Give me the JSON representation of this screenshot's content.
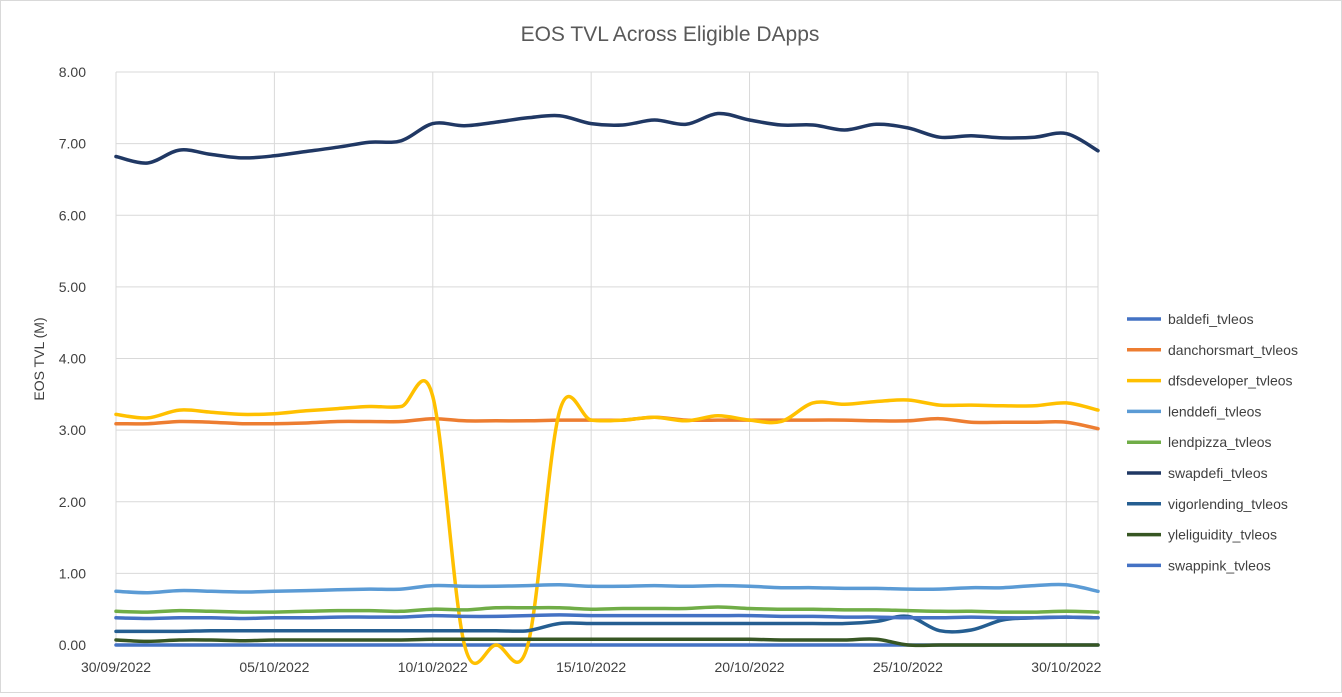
{
  "chart_data": {
    "type": "line",
    "title": "EOS TVL Across Eligible DApps",
    "xlabel": "",
    "ylabel": "EOS TVL (M)",
    "ylim": [
      0,
      8
    ],
    "yticks": [
      "0.00",
      "1.00",
      "2.00",
      "3.00",
      "4.00",
      "5.00",
      "6.00",
      "7.00",
      "8.00"
    ],
    "xticks": [
      "30/09/2022",
      "05/10/2022",
      "10/10/2022",
      "15/10/2022",
      "20/10/2022",
      "25/10/2022",
      "30/10/2022"
    ],
    "x": [
      "30/09/2022",
      "01/10/2022",
      "02/10/2022",
      "03/10/2022",
      "04/10/2022",
      "05/10/2022",
      "06/10/2022",
      "07/10/2022",
      "08/10/2022",
      "09/10/2022",
      "10/10/2022",
      "11/10/2022",
      "12/10/2022",
      "13/10/2022",
      "14/10/2022",
      "15/10/2022",
      "16/10/2022",
      "17/10/2022",
      "18/10/2022",
      "19/10/2022",
      "20/10/2022",
      "21/10/2022",
      "22/10/2022",
      "23/10/2022",
      "24/10/2022",
      "25/10/2022",
      "26/10/2022",
      "27/10/2022",
      "28/10/2022",
      "29/10/2022",
      "30/10/2022",
      "31/10/2022"
    ],
    "grid": true,
    "legend_position": "right",
    "series": [
      {
        "name": "baldefi_tvleos",
        "color": "#4472c4",
        "values": [
          0,
          0,
          0,
          0,
          0,
          0,
          0,
          0,
          0,
          0,
          0,
          0,
          0,
          0,
          0,
          0,
          0,
          0,
          0,
          0,
          0,
          0,
          0,
          0,
          0,
          0,
          0,
          0,
          0,
          0,
          0,
          0
        ]
      },
      {
        "name": "danchorsmart_tvleos",
        "color": "#ed7d31",
        "values": [
          3.09,
          3.09,
          3.12,
          3.11,
          3.09,
          3.09,
          3.1,
          3.12,
          3.12,
          3.12,
          3.16,
          3.13,
          3.13,
          3.13,
          3.14,
          3.14,
          3.14,
          3.18,
          3.14,
          3.14,
          3.14,
          3.14,
          3.14,
          3.14,
          3.13,
          3.13,
          3.16,
          3.11,
          3.11,
          3.11,
          3.11,
          3.02
        ]
      },
      {
        "name": "dfsdeveloper_tvleos",
        "color": "#ffc000",
        "values": [
          3.22,
          3.17,
          3.28,
          3.25,
          3.22,
          3.23,
          3.27,
          3.3,
          3.33,
          3.33,
          3.47,
          0,
          0,
          0,
          3.26,
          3.14,
          3.14,
          3.18,
          3.13,
          3.2,
          3.14,
          3.12,
          3.38,
          3.36,
          3.4,
          3.42,
          3.35,
          3.35,
          3.34,
          3.34,
          3.38,
          3.28
        ]
      },
      {
        "name": "lenddefi_tvleos",
        "color": "#5b9bd5",
        "values": [
          0.75,
          0.73,
          0.76,
          0.75,
          0.74,
          0.75,
          0.76,
          0.77,
          0.78,
          0.78,
          0.83,
          0.82,
          0.82,
          0.83,
          0.84,
          0.82,
          0.82,
          0.83,
          0.82,
          0.83,
          0.82,
          0.8,
          0.8,
          0.79,
          0.79,
          0.78,
          0.78,
          0.8,
          0.8,
          0.83,
          0.84,
          0.75
        ]
      },
      {
        "name": "lendpizza_tvleos",
        "color": "#70ad47",
        "values": [
          0.47,
          0.46,
          0.48,
          0.47,
          0.46,
          0.46,
          0.47,
          0.48,
          0.48,
          0.47,
          0.5,
          0.49,
          0.52,
          0.52,
          0.52,
          0.5,
          0.51,
          0.51,
          0.51,
          0.53,
          0.51,
          0.5,
          0.5,
          0.49,
          0.49,
          0.48,
          0.47,
          0.47,
          0.46,
          0.46,
          0.47,
          0.46
        ]
      },
      {
        "name": "swapdefi_tvleos",
        "color": "#203864",
        "values": [
          6.82,
          6.73,
          6.91,
          6.85,
          6.8,
          6.83,
          6.89,
          6.95,
          7.02,
          7.04,
          7.28,
          7.25,
          7.3,
          7.36,
          7.39,
          7.28,
          7.26,
          7.33,
          7.27,
          7.42,
          7.33,
          7.26,
          7.26,
          7.19,
          7.27,
          7.22,
          7.09,
          7.11,
          7.08,
          7.09,
          7.14,
          6.9
        ]
      },
      {
        "name": "vigorlending_tvleos",
        "color": "#255e91",
        "values": [
          0.19,
          0.19,
          0.19,
          0.2,
          0.2,
          0.2,
          0.2,
          0.2,
          0.2,
          0.2,
          0.2,
          0.2,
          0.2,
          0.2,
          0.3,
          0.3,
          0.3,
          0.3,
          0.3,
          0.3,
          0.3,
          0.3,
          0.3,
          0.3,
          0.33,
          0.4,
          0.2,
          0.21,
          0.35,
          0.38,
          0.39,
          0.38
        ]
      },
      {
        "name": "yleliguidity_tvleos",
        "color": "#375623",
        "values": [
          0.07,
          0.05,
          0.07,
          0.07,
          0.06,
          0.07,
          0.07,
          0.07,
          0.07,
          0.07,
          0.08,
          0.08,
          0.08,
          0.08,
          0.08,
          0.08,
          0.08,
          0.08,
          0.08,
          0.08,
          0.08,
          0.07,
          0.07,
          0.07,
          0.08,
          0,
          0,
          0,
          0,
          0,
          0,
          0
        ]
      },
      {
        "name": "swappink_tvleos",
        "color": "#4472c4",
        "values": [
          0.38,
          0.37,
          0.38,
          0.38,
          0.37,
          0.38,
          0.38,
          0.39,
          0.39,
          0.39,
          0.41,
          0.4,
          0.4,
          0.41,
          0.42,
          0.41,
          0.41,
          0.41,
          0.41,
          0.41,
          0.41,
          0.4,
          0.4,
          0.39,
          0.39,
          0.38,
          0.38,
          0.39,
          0.38,
          0.38,
          0.39,
          0.38
        ]
      }
    ]
  }
}
